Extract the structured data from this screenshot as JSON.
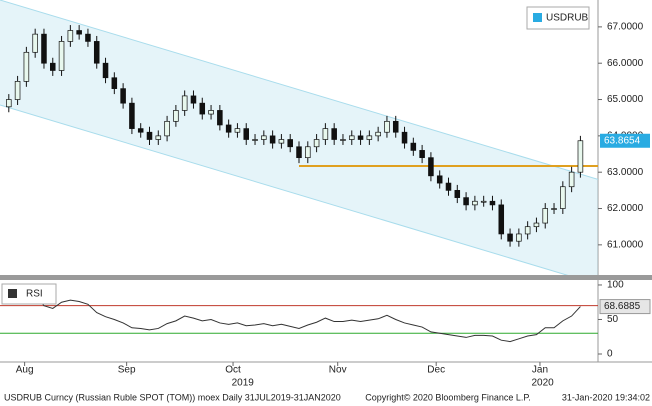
{
  "chart_data": [
    {
      "type": "candlestick",
      "series": [
        {
          "name": "USDRUB",
          "color": "#29abe2",
          "values": [
            [
              64.8,
              65.15,
              64.65,
              65.0
            ],
            [
              65.0,
              65.65,
              64.85,
              65.5
            ],
            [
              65.5,
              66.45,
              65.35,
              66.3
            ],
            [
              66.3,
              66.95,
              66.15,
              66.8
            ],
            [
              66.8,
              66.95,
              65.85,
              66.0
            ],
            [
              66.0,
              66.15,
              65.65,
              65.8
            ],
            [
              65.8,
              66.75,
              65.65,
              66.6
            ],
            [
              66.6,
              67.05,
              66.45,
              66.9
            ],
            [
              66.9,
              67.05,
              66.65,
              66.8
            ],
            [
              66.8,
              66.95,
              66.45,
              66.6
            ],
            [
              66.6,
              66.75,
              65.85,
              66.0
            ],
            [
              66.0,
              66.15,
              65.45,
              65.6
            ],
            [
              65.6,
              65.75,
              65.15,
              65.3
            ],
            [
              65.3,
              65.45,
              64.75,
              64.9
            ],
            [
              64.9,
              65.05,
              64.05,
              64.2
            ],
            [
              64.2,
              64.35,
              63.95,
              64.1
            ],
            [
              64.1,
              64.25,
              63.75,
              63.9
            ],
            [
              63.9,
              64.15,
              63.75,
              64.0
            ],
            [
              64.0,
              64.55,
              63.85,
              64.4
            ],
            [
              64.4,
              64.85,
              64.25,
              64.7
            ],
            [
              64.7,
              65.25,
              64.55,
              65.1
            ],
            [
              65.1,
              65.25,
              64.75,
              64.9
            ],
            [
              64.9,
              65.05,
              64.45,
              64.6
            ],
            [
              64.6,
              64.85,
              64.45,
              64.7
            ],
            [
              64.7,
              64.85,
              64.15,
              64.3
            ],
            [
              64.3,
              64.45,
              63.95,
              64.1
            ],
            [
              64.1,
              64.35,
              63.95,
              64.2
            ],
            [
              64.2,
              64.35,
              63.75,
              63.9
            ],
            [
              63.9,
              64.05,
              63.75,
              63.9
            ],
            [
              63.9,
              64.15,
              63.75,
              64.0
            ],
            [
              64.0,
              64.15,
              63.65,
              63.8
            ],
            [
              63.8,
              64.05,
              63.65,
              63.9
            ],
            [
              63.9,
              64.05,
              63.55,
              63.7
            ],
            [
              63.7,
              63.85,
              63.25,
              63.4
            ],
            [
              63.4,
              63.85,
              63.25,
              63.7
            ],
            [
              63.7,
              64.05,
              63.55,
              63.9
            ],
            [
              63.9,
              64.35,
              63.75,
              64.2
            ],
            [
              64.2,
              64.35,
              63.75,
              63.9
            ],
            [
              63.9,
              64.05,
              63.75,
              63.9
            ],
            [
              63.9,
              64.15,
              63.75,
              64.0
            ],
            [
              64.0,
              64.15,
              63.75,
              63.9
            ],
            [
              63.9,
              64.15,
              63.75,
              64.0
            ],
            [
              64.0,
              64.25,
              63.85,
              64.1
            ],
            [
              64.1,
              64.55,
              63.95,
              64.4
            ],
            [
              64.4,
              64.55,
              63.95,
              64.1
            ],
            [
              64.1,
              64.25,
              63.65,
              63.8
            ],
            [
              63.8,
              63.95,
              63.45,
              63.6
            ],
            [
              63.6,
              63.75,
              63.25,
              63.4
            ],
            [
              63.4,
              63.55,
              62.75,
              62.9
            ],
            [
              62.9,
              63.05,
              62.55,
              62.7
            ],
            [
              62.7,
              62.85,
              62.35,
              62.5
            ],
            [
              62.5,
              62.65,
              62.15,
              62.3
            ],
            [
              62.3,
              62.45,
              61.95,
              62.1
            ],
            [
              62.1,
              62.35,
              61.95,
              62.2
            ],
            [
              62.2,
              62.35,
              62.05,
              62.2
            ],
            [
              62.2,
              62.35,
              61.95,
              62.1
            ],
            [
              62.1,
              62.25,
              61.15,
              61.3
            ],
            [
              61.3,
              61.45,
              60.95,
              61.1
            ],
            [
              61.1,
              61.45,
              60.95,
              61.3
            ],
            [
              61.3,
              61.65,
              61.15,
              61.5
            ],
            [
              61.5,
              61.75,
              61.35,
              61.6
            ],
            [
              61.6,
              62.15,
              61.45,
              62.0
            ],
            [
              62.0,
              62.15,
              61.85,
              62.0
            ],
            [
              62.0,
              62.75,
              61.85,
              62.6
            ],
            [
              62.6,
              63.15,
              62.45,
              63.0
            ],
            [
              63.0,
              64.0,
              62.85,
              63.8654
            ]
          ]
        }
      ],
      "xlim": [
        -1,
        67
      ],
      "ylim": [
        60.17,
        67.74
      ],
      "yticks": [
        {
          "value": 61,
          "label": "61.0000"
        },
        {
          "value": 62,
          "label": "62.0000"
        },
        {
          "value": 63,
          "label": "63.0000"
        },
        {
          "value": 64,
          "label": "64.0000"
        },
        {
          "value": 65,
          "label": "65.0000"
        },
        {
          "value": 66,
          "label": "66.0000"
        },
        {
          "value": 67,
          "label": "67.0000"
        }
      ],
      "xticks": [
        {
          "value": 1.8,
          "label": "Aug"
        },
        {
          "value": 13.4,
          "label": "Sep"
        },
        {
          "value": 25.5,
          "label": "Oct"
        },
        {
          "value": 37.4,
          "label": "Nov"
        },
        {
          "value": 48.6,
          "label": "Dec"
        },
        {
          "value": 60.4,
          "label": "Jan"
        }
      ],
      "year_ticks": [
        {
          "value": 26.6,
          "label": "2019"
        },
        {
          "value": 60.7,
          "label": "2020"
        }
      ],
      "channel": {
        "color": "#a8dcec",
        "upper": {
          "x": [
            -1,
            67
          ],
          "y": [
            67.74,
            62.8
          ]
        },
        "lower": {
          "x": [
            -1,
            67
          ],
          "y": [
            64.85,
            59.91
          ]
        }
      },
      "support": {
        "color": "#e0a020",
        "x": [
          33,
          67
        ],
        "y": 63.17
      },
      "legend": "upper right"
    },
    {
      "type": "line",
      "legend_label": "RSI",
      "series": [
        {
          "name": "RSI",
          "color": "#333333",
          "values": [
            78,
            80,
            84,
            86,
            70,
            66,
            75,
            78,
            76,
            72,
            60,
            54,
            50,
            45,
            38,
            37,
            35,
            37,
            44,
            48,
            55,
            52,
            48,
            50,
            45,
            43,
            45,
            41,
            42,
            44,
            41,
            43,
            40,
            37,
            42,
            46,
            52,
            47,
            47,
            49,
            47,
            49,
            51,
            56,
            50,
            45,
            42,
            39,
            32,
            30,
            28,
            26,
            24,
            27,
            27,
            26,
            20,
            18,
            22,
            26,
            28,
            38,
            38,
            48,
            55,
            68.6885
          ]
        }
      ],
      "xlim": [
        -1,
        67
      ],
      "ylim": [
        -11.6,
        107.2
      ],
      "yticks": [
        0,
        50,
        100
      ],
      "levels": [
        {
          "value": 70,
          "color": "#c0392b"
        },
        {
          "value": 30,
          "color": "#2eaa2e"
        }
      ]
    }
  ],
  "footer": {
    "left": "USDRUB Curncy (Russian Ruble SPOT (TOM)) moex  Daily 31JUL2019-31JAN2020",
    "center": "Copyright© 2020 Bloomberg Finance L.P.",
    "right": "31-Jan-2020 19:34:02"
  }
}
